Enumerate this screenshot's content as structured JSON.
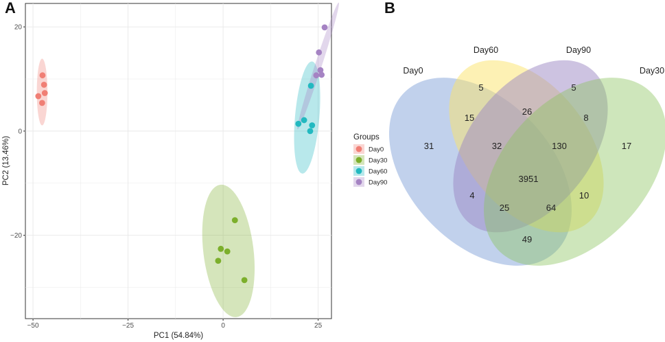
{
  "panels": {
    "a": "A",
    "b": "B"
  },
  "chart_data": [
    {
      "type": "scatter",
      "title": "",
      "xlabel": "PC1 (54.84%)",
      "ylabel": "PC2 (13.46%)",
      "xlim": [
        -52,
        28.5
      ],
      "ylim": [
        -36,
        24.5
      ],
      "xticks": [
        -50,
        -25,
        0,
        25
      ],
      "xtick_labels": [
        "−50",
        "−25",
        "0",
        "25"
      ],
      "yticks": [
        -20,
        0,
        20
      ],
      "ytick_labels": [
        "−20",
        "0",
        "20"
      ],
      "grid": true,
      "legend_title": "Groups",
      "legend_position": "right",
      "series": [
        {
          "name": "Day0",
          "color": "#f07f75",
          "points": [
            [
              -47.5,
              10.7
            ],
            [
              -47.1,
              8.9
            ],
            [
              -46.9,
              7.3
            ],
            [
              -48.6,
              6.7
            ],
            [
              -47.6,
              5.4
            ]
          ],
          "ellipse": {
            "cx": -47.6,
            "cy": 7.5,
            "rx": 1.4,
            "ry": 6.4,
            "angle": 0
          }
        },
        {
          "name": "Day30",
          "color": "#7caf2b",
          "points": [
            [
              3.1,
              -17.1
            ],
            [
              -0.6,
              -22.6
            ],
            [
              1.1,
              -23.1
            ],
            [
              -1.3,
              -24.9
            ],
            [
              5.6,
              -28.6
            ]
          ],
          "ellipse": {
            "cx": 1.4,
            "cy": -23.0,
            "rx": 6.6,
            "ry": 12.8,
            "angle": -7
          }
        },
        {
          "name": "Day60",
          "color": "#22b9c0",
          "points": [
            [
              23.1,
              8.7
            ],
            [
              21.3,
              2.1
            ],
            [
              19.8,
              1.4
            ],
            [
              23.4,
              1.1
            ],
            [
              22.9,
              0.0
            ]
          ],
          "ellipse": {
            "cx": 22.1,
            "cy": 2.6,
            "rx": 3.2,
            "ry": 10.8,
            "angle": 5
          }
        },
        {
          "name": "Day90",
          "color": "#a583c3",
          "points": [
            [
              26.7,
              19.9
            ],
            [
              25.2,
              15.1
            ],
            [
              25.6,
              11.7
            ],
            [
              24.5,
              10.7
            ],
            [
              25.9,
              10.8
            ]
          ],
          "ellipse": {
            "cx": 25.0,
            "cy": 12.5,
            "rx": 0.9,
            "ry": 12.8,
            "angle": 18
          }
        }
      ]
    },
    {
      "type": "venn",
      "sets": [
        {
          "name": "Day0",
          "color": "#5b87cd"
        },
        {
          "name": "Day60",
          "color": "#fbe369"
        },
        {
          "name": "Day90",
          "color": "#9c87c4"
        },
        {
          "name": "Day30",
          "color": "#8bc45c"
        }
      ],
      "regions": [
        {
          "sets": [
            "Day60"
          ],
          "count": 5
        },
        {
          "sets": [
            "Day90"
          ],
          "count": 5
        },
        {
          "sets": [
            "Day60",
            "Day90"
          ],
          "count": 26
        },
        {
          "sets": [
            "Day0",
            "Day60"
          ],
          "count": 15
        },
        {
          "sets": [
            "Day90",
            "Day30"
          ],
          "count": 8
        },
        {
          "sets": [
            "Day0"
          ],
          "count": 31
        },
        {
          "sets": [
            "Day0",
            "Day60",
            "Day90"
          ],
          "count": 32
        },
        {
          "sets": [
            "Day60",
            "Day90",
            "Day30"
          ],
          "count": 130
        },
        {
          "sets": [
            "Day30"
          ],
          "count": 17
        },
        {
          "sets": [
            "Day0",
            "Day60",
            "Day90",
            "Day30"
          ],
          "count": 3951
        },
        {
          "sets": [
            "Day0",
            "Day90"
          ],
          "count": 4
        },
        {
          "sets": [
            "Day60",
            "Day30"
          ],
          "count": 10
        },
        {
          "sets": [
            "Day0",
            "Day90",
            "Day30"
          ],
          "count": 25
        },
        {
          "sets": [
            "Day0",
            "Day60",
            "Day30"
          ],
          "count": 64
        },
        {
          "sets": [
            "Day0",
            "Day30"
          ],
          "count": 49
        }
      ]
    }
  ]
}
